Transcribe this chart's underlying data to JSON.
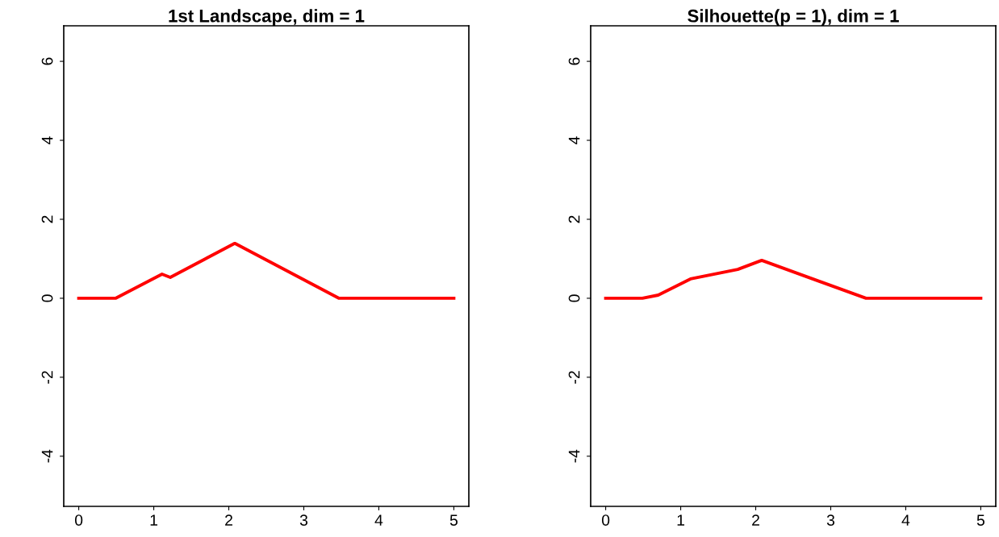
{
  "chart_data": [
    {
      "type": "line",
      "title": "1st Landscape, dim = 1",
      "x": [
        0,
        0.49,
        1.11,
        1.22,
        2.08,
        3.47,
        5
      ],
      "series": [
        {
          "color": "#ff0000",
          "values": [
            0,
            0,
            0.61,
            0.53,
            1.39,
            0,
            0
          ]
        }
      ],
      "xlim": [
        -0.2,
        5.2
      ],
      "xticks": [
        0,
        1,
        2,
        3,
        4,
        5
      ],
      "ylim": [
        -5.27,
        6.9
      ],
      "yticks": [
        -4,
        -2,
        0,
        2,
        4,
        6
      ],
      "grid": false,
      "legend": false,
      "marker": "none",
      "line_style": "solid"
    },
    {
      "type": "line",
      "title": "Silhouette(p = 1), dim = 1",
      "x": [
        0,
        0.49,
        0.7,
        1.13,
        1.76,
        2.08,
        3.47,
        5
      ],
      "series": [
        {
          "color": "#ff0000",
          "values": [
            0,
            0,
            0.08,
            0.49,
            0.73,
            0.96,
            0,
            0
          ]
        }
      ],
      "xlim": [
        -0.2,
        5.2
      ],
      "xticks": [
        0,
        1,
        2,
        3,
        4,
        5
      ],
      "ylim": [
        -5.27,
        6.9
      ],
      "yticks": [
        -4,
        -2,
        0,
        2,
        4,
        6
      ],
      "grid": false,
      "legend": false,
      "marker": "none",
      "line_style": "solid"
    }
  ]
}
